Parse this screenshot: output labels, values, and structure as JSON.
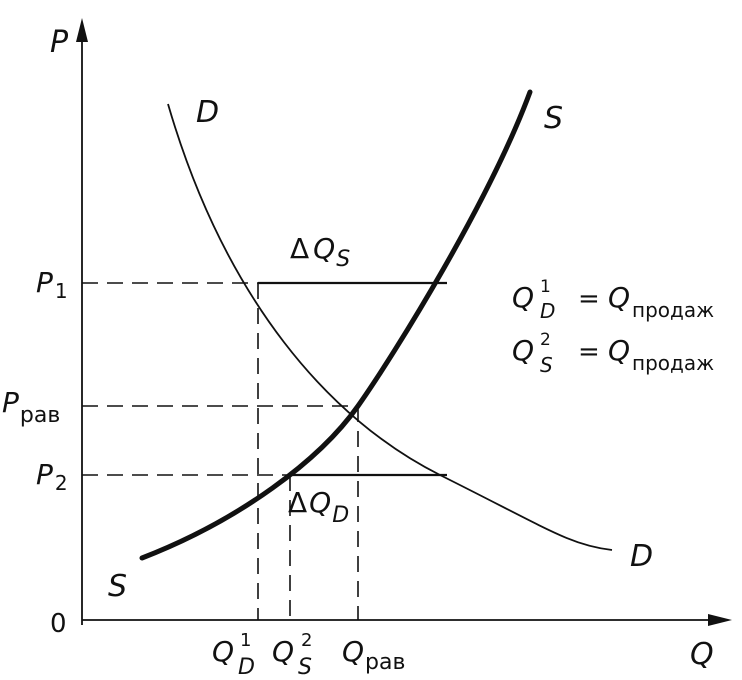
{
  "axes": {
    "y_label": "P",
    "x_label": "Q",
    "origin_label": "0"
  },
  "curves": {
    "demand_label": "D",
    "supply_label": "S"
  },
  "price_labels": {
    "p1": {
      "main": "P",
      "sub": "1"
    },
    "p_eq": {
      "main": "P",
      "sub": "рав"
    },
    "p2": {
      "main": "P",
      "sub": "2"
    }
  },
  "quantity_labels": {
    "qd1": {
      "main": "Q",
      "sup": "1",
      "sub": "D"
    },
    "qs2": {
      "main": "Q",
      "sup": "2",
      "sub": "S"
    },
    "q_eq": {
      "main": "Q",
      "sub": "рав"
    }
  },
  "gap_labels": {
    "delta_qs": {
      "delta": "Δ",
      "main": "Q",
      "sub": "S"
    },
    "delta_qd": {
      "delta": "Δ",
      "main": "Q",
      "sub": "D"
    }
  },
  "equations": [
    {
      "main": "Q",
      "sup": "1",
      "sub": "D",
      "eq": "=",
      "rhs": "Q",
      "rhs_sub": "продаж"
    },
    {
      "main": "Q",
      "sup": "2",
      "sub": "S",
      "eq": "=",
      "rhs": "Q",
      "rhs_sub": "продаж"
    }
  ]
}
